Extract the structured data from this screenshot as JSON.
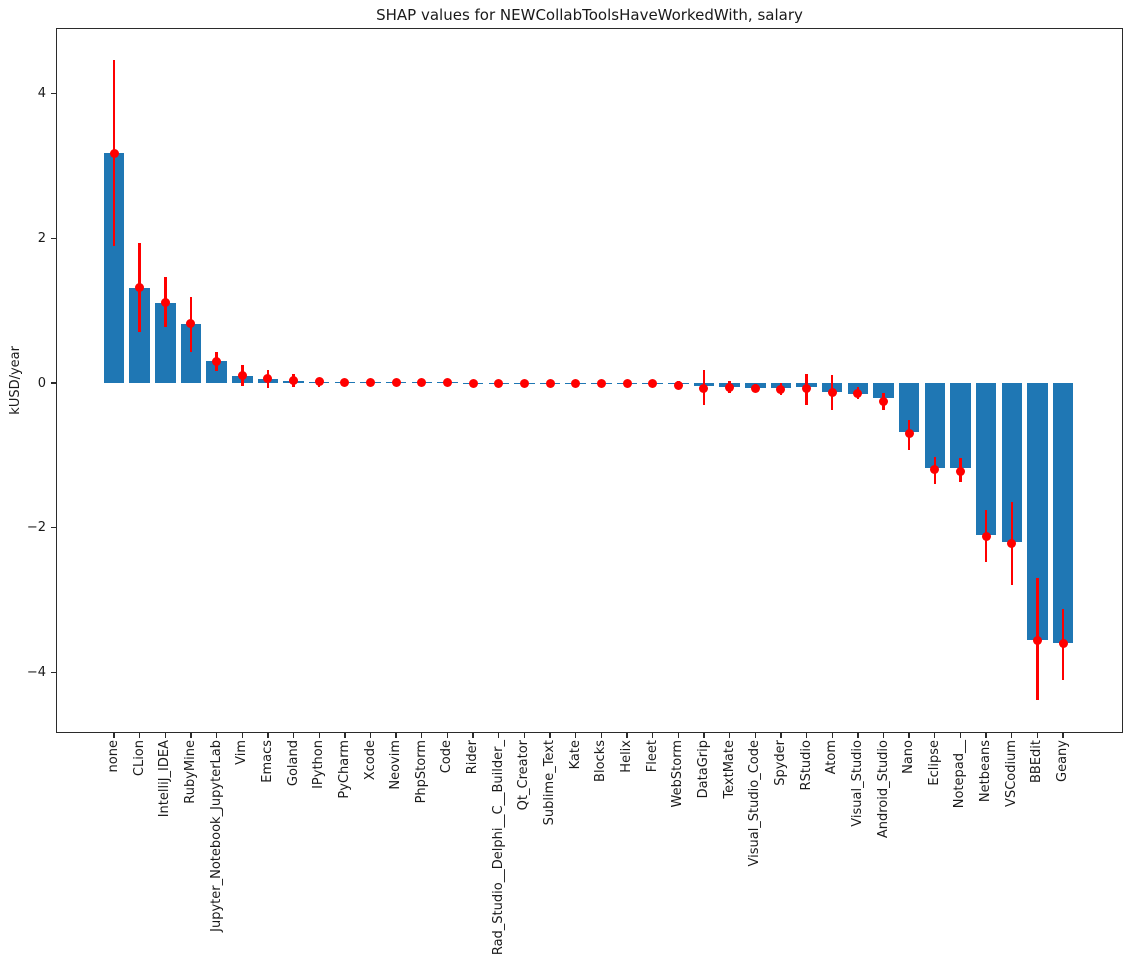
{
  "figure": {
    "title": "SHAP values for NEWCollabToolsHaveWorkedWith, salary",
    "ylabel": "kUSD/year"
  },
  "chart_data": {
    "type": "bar",
    "title": "SHAP values for NEWCollabToolsHaveWorkedWith, salary",
    "xlabel": "",
    "ylabel": "kUSD/year",
    "ylim": [
      -4.84,
      4.91
    ],
    "yticks": [
      -4,
      -2,
      0,
      2,
      4
    ],
    "grid": false,
    "legend": null,
    "bar_color": "#1f77b4",
    "error_color": "#ff0000",
    "categories": [
      "none",
      "CLion",
      "IntelliJ_IDEA",
      "RubyMine",
      "Jupyter_Notebook_JupyterLab",
      "Vim",
      "Emacs",
      "Goland",
      "IPython",
      "PyCharm",
      "Xcode",
      "Neovim",
      "PhpStorm",
      "Code",
      "Rider",
      "Rad_Studio__Delphi__C__Builder_",
      "Qt_Creator",
      "Sublime_Text",
      "Kate",
      "Blocks",
      "Helix",
      "Fleet",
      "WebStorm",
      "DataGrip",
      "TextMate",
      "Visual_Studio_Code",
      "Spyder",
      "RStudio",
      "Atom",
      "Visual_Studio",
      "Android_Studio",
      "Nano",
      "Eclipse",
      "Notepad__",
      "Netbeans",
      "VSCodium",
      "BBEdit",
      "Geany"
    ],
    "series": [
      {
        "name": "bar_value",
        "values": [
          3.18,
          1.32,
          1.1,
          0.82,
          0.3,
          0.1,
          0.06,
          0.03,
          0.02,
          0.01,
          0.01,
          0.01,
          0.01,
          0.01,
          0.0,
          0.0,
          0.0,
          0.0,
          0.0,
          0.0,
          0.0,
          -0.01,
          -0.02,
          -0.04,
          -0.05,
          -0.07,
          -0.07,
          -0.06,
          -0.12,
          -0.15,
          -0.21,
          -0.68,
          -1.17,
          -1.18,
          -2.1,
          -2.2,
          -3.56,
          -3.6
        ]
      },
      {
        "name": "point_estimate",
        "values": [
          3.18,
          1.32,
          1.11,
          0.82,
          0.3,
          0.11,
          0.06,
          0.04,
          0.02,
          0.01,
          0.01,
          0.01,
          0.01,
          0.01,
          0.0,
          0.0,
          0.0,
          0.0,
          0.0,
          0.0,
          0.0,
          -0.01,
          -0.03,
          -0.07,
          -0.06,
          -0.07,
          -0.09,
          -0.07,
          -0.13,
          -0.14,
          -0.26,
          -0.7,
          -1.2,
          -1.23,
          -2.12,
          -2.22,
          -3.56,
          -3.6
        ]
      },
      {
        "name": "error_low",
        "values": [
          1.89,
          0.71,
          0.78,
          0.43,
          0.17,
          -0.04,
          -0.07,
          -0.06,
          -0.05,
          -0.01,
          -0.01,
          -0.01,
          -0.01,
          -0.01,
          -0.02,
          -0.01,
          -0.01,
          -0.01,
          -0.01,
          -0.01,
          -0.02,
          -0.03,
          -0.08,
          -0.3,
          -0.14,
          -0.13,
          -0.17,
          -0.3,
          -0.37,
          -0.22,
          -0.37,
          -0.93,
          -1.39,
          -1.37,
          -2.47,
          -2.8,
          -4.39,
          -4.11
        ]
      },
      {
        "name": "error_high",
        "values": [
          4.47,
          1.93,
          1.46,
          1.19,
          0.43,
          0.25,
          0.18,
          0.12,
          0.07,
          0.03,
          0.03,
          0.03,
          0.03,
          0.02,
          0.02,
          0.01,
          0.01,
          0.01,
          0.01,
          0.01,
          0.01,
          0.01,
          0.03,
          0.18,
          0.03,
          -0.02,
          0.0,
          0.13,
          0.11,
          -0.06,
          -0.14,
          -0.51,
          -1.02,
          -1.04,
          -1.76,
          -1.64,
          -2.7,
          -3.12
        ]
      }
    ]
  }
}
